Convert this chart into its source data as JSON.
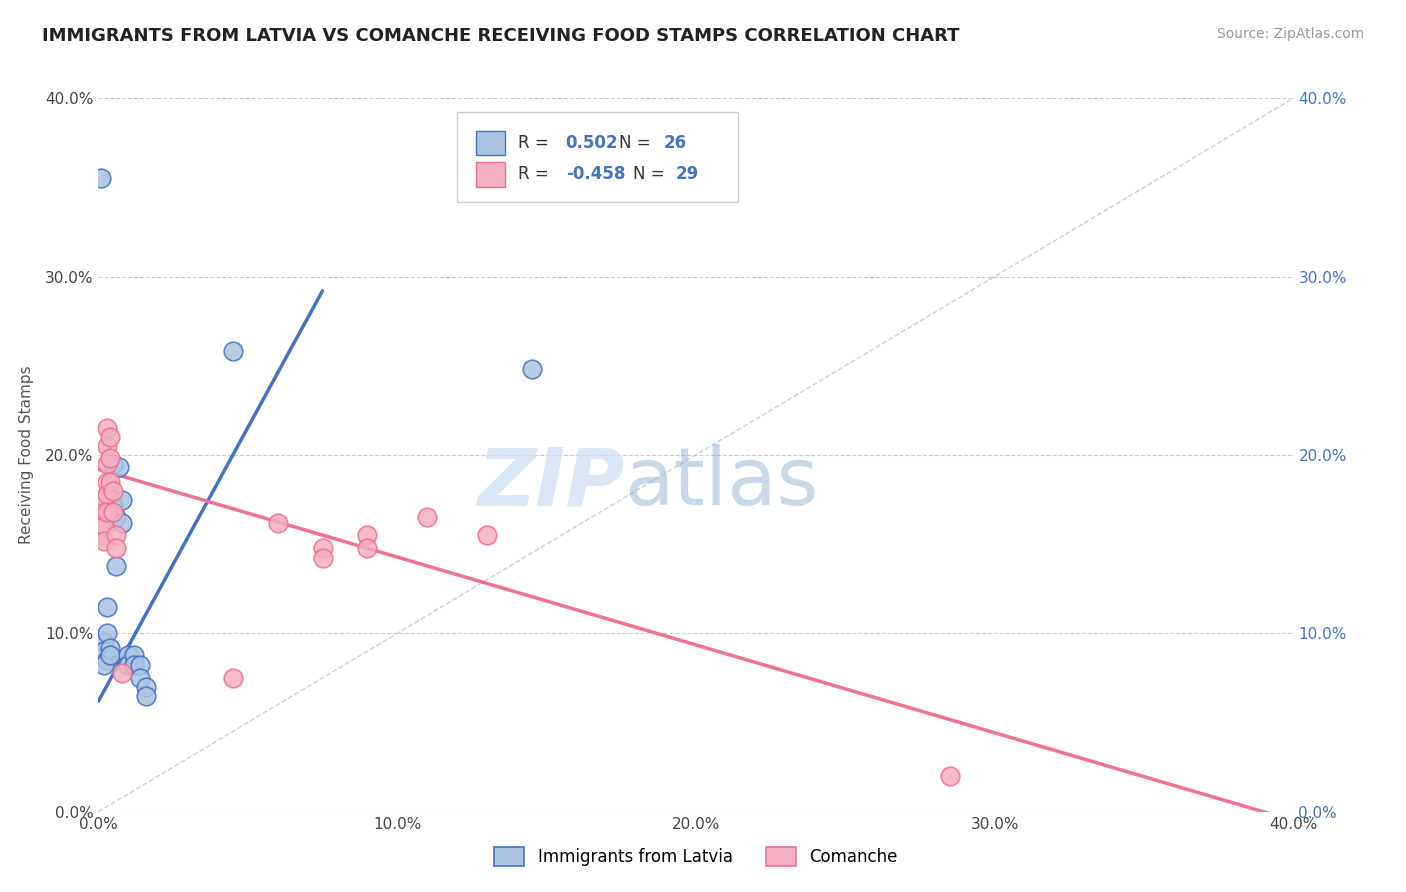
{
  "title": "IMMIGRANTS FROM LATVIA VS COMANCHE RECEIVING FOOD STAMPS CORRELATION CHART",
  "source": "Source: ZipAtlas.com",
  "ylabel": "Receiving Food Stamps",
  "legend_labels": [
    "Immigrants from Latvia",
    "Comanche"
  ],
  "watermark_zip": "ZIP",
  "watermark_atlas": "atlas",
  "latvia_color": "#aac4e2",
  "comanche_color": "#f4afc0",
  "line_latvia_color": "#4472c4",
  "line_comanche_color": "#f07090",
  "diagonal_color": "#b0c8e0",
  "xlim": [
    0.0,
    0.4
  ],
  "ylim": [
    0.0,
    0.4
  ],
  "latvia_scatter": [
    [
      0.001,
      0.355
    ],
    [
      0.002,
      0.095
    ],
    [
      0.002,
      0.09
    ],
    [
      0.003,
      0.085
    ],
    [
      0.002,
      0.082
    ],
    [
      0.003,
      0.115
    ],
    [
      0.003,
      0.1
    ],
    [
      0.004,
      0.092
    ],
    [
      0.004,
      0.088
    ],
    [
      0.005,
      0.195
    ],
    [
      0.005,
      0.172
    ],
    [
      0.006,
      0.165
    ],
    [
      0.006,
      0.138
    ],
    [
      0.007,
      0.193
    ],
    [
      0.008,
      0.175
    ],
    [
      0.008,
      0.162
    ],
    [
      0.01,
      0.088
    ],
    [
      0.01,
      0.082
    ],
    [
      0.012,
      0.088
    ],
    [
      0.012,
      0.082
    ],
    [
      0.014,
      0.082
    ],
    [
      0.014,
      0.075
    ],
    [
      0.016,
      0.07
    ],
    [
      0.016,
      0.065
    ],
    [
      0.045,
      0.258
    ],
    [
      0.145,
      0.248
    ]
  ],
  "comanche_scatter": [
    [
      0.001,
      0.175
    ],
    [
      0.001,
      0.162
    ],
    [
      0.001,
      0.155
    ],
    [
      0.002,
      0.168
    ],
    [
      0.002,
      0.16
    ],
    [
      0.002,
      0.152
    ],
    [
      0.003,
      0.215
    ],
    [
      0.003,
      0.205
    ],
    [
      0.003,
      0.195
    ],
    [
      0.003,
      0.185
    ],
    [
      0.003,
      0.178
    ],
    [
      0.003,
      0.168
    ],
    [
      0.004,
      0.21
    ],
    [
      0.004,
      0.198
    ],
    [
      0.004,
      0.185
    ],
    [
      0.005,
      0.18
    ],
    [
      0.005,
      0.168
    ],
    [
      0.006,
      0.155
    ],
    [
      0.006,
      0.148
    ],
    [
      0.008,
      0.078
    ],
    [
      0.06,
      0.162
    ],
    [
      0.075,
      0.148
    ],
    [
      0.075,
      0.142
    ],
    [
      0.09,
      0.155
    ],
    [
      0.09,
      0.148
    ],
    [
      0.11,
      0.165
    ],
    [
      0.13,
      0.155
    ],
    [
      0.045,
      0.075
    ],
    [
      0.285,
      0.02
    ]
  ],
  "latvia_line": [
    [
      0.0,
      0.062
    ],
    [
      0.075,
      0.292
    ]
  ],
  "comanche_line": [
    [
      0.0,
      0.192
    ],
    [
      0.4,
      -0.005
    ]
  ],
  "diagonal_line": [
    [
      0.0,
      0.0
    ],
    [
      0.4,
      0.4
    ]
  ],
  "title_fontsize": 13,
  "axis_label_fontsize": 11,
  "tick_fontsize": 11,
  "source_fontsize": 10
}
